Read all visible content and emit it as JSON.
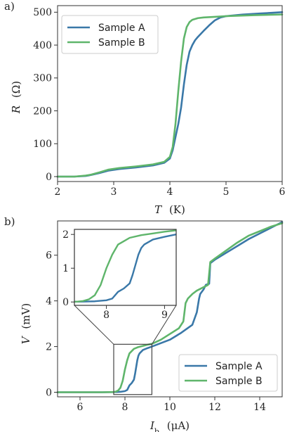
{
  "colors": {
    "sample_a": "#3a78a8",
    "sample_b": "#5fb56b",
    "axis": "#333333",
    "guide": "#444444"
  },
  "chart_data": [
    {
      "panel_label": "a)",
      "type": "line",
      "xlabel_italic": "T",
      "xlabel_unit": "(K)",
      "ylabel_italic": "R",
      "ylabel_unit": "(Ω)",
      "xlim": [
        2,
        6
      ],
      "ylim": [
        -15,
        520
      ],
      "xticks": [
        2,
        3,
        4,
        5,
        6
      ],
      "yticks": [
        0,
        100,
        200,
        300,
        400,
        500
      ],
      "grid": false,
      "legend": {
        "placement": "top-left"
      },
      "series": [
        {
          "name": "Sample A",
          "color": "#3a78a8",
          "x": [
            2.0,
            2.3,
            2.5,
            2.6,
            2.75,
            2.9,
            3.1,
            3.4,
            3.7,
            3.9,
            4.0,
            4.05,
            4.1,
            4.15,
            4.2,
            4.25,
            4.3,
            4.35,
            4.4,
            4.45,
            4.5,
            4.6,
            4.7,
            4.8,
            4.9,
            5.0,
            5.3,
            5.6,
            6.0
          ],
          "y": [
            0,
            0,
            2,
            5,
            11,
            18,
            23,
            28,
            34,
            42,
            55,
            80,
            120,
            160,
            210,
            280,
            340,
            380,
            400,
            415,
            425,
            443,
            460,
            475,
            484,
            488,
            493,
            496,
            500
          ]
        },
        {
          "name": "Sample B",
          "color": "#5fb56b",
          "x": [
            2.0,
            2.3,
            2.5,
            2.6,
            2.75,
            2.9,
            3.1,
            3.4,
            3.7,
            3.9,
            4.0,
            4.05,
            4.1,
            4.15,
            4.2,
            4.25,
            4.3,
            4.35,
            4.4,
            4.5,
            4.6,
            4.8,
            5.0,
            5.5,
            6.0
          ],
          "y": [
            0,
            0,
            3,
            6,
            13,
            21,
            26,
            31,
            37,
            45,
            60,
            90,
            160,
            260,
            350,
            420,
            455,
            470,
            477,
            482,
            484,
            486,
            488,
            491,
            493
          ]
        }
      ]
    },
    {
      "panel_label": "b)",
      "type": "line",
      "xlabel_italic": "I",
      "xlabel_sub": "b",
      "xlabel_unit": "(μA)",
      "ylabel_italic": "V",
      "ylabel_unit": "(mV)",
      "xlim": [
        5,
        15
      ],
      "ylim": [
        -0.2,
        7.5
      ],
      "xticks": [
        6,
        8,
        10,
        12,
        14
      ],
      "yticks": [
        0,
        2,
        4,
        6
      ],
      "grid": false,
      "legend": {
        "placement": "bottom-right"
      },
      "zoom_box": {
        "x": [
          7.5,
          9.2
        ],
        "y": [
          -0.1,
          2.1
        ]
      },
      "inset": {
        "xlim": [
          7.45,
          9.2
        ],
        "ylim": [
          -0.1,
          2.15
        ],
        "xticks": [
          8,
          9
        ],
        "yticks": [
          0,
          1,
          2
        ]
      },
      "series": [
        {
          "name": "Sample A",
          "color": "#3a78a8",
          "x": [
            5.0,
            7.0,
            7.6,
            7.8,
            8.0,
            8.1,
            8.2,
            8.3,
            8.4,
            8.45,
            8.5,
            8.55,
            8.6,
            8.65,
            8.7,
            8.75,
            8.8,
            9.0,
            9.2,
            9.6,
            10.0,
            10.5,
            11.0,
            11.2,
            11.3,
            11.35,
            11.5,
            11.6,
            11.75,
            11.8,
            12.0,
            12.5,
            13.0,
            13.5,
            14.0,
            14.5,
            15.0
          ],
          "y": [
            0.0,
            0.0,
            0.01,
            0.02,
            0.05,
            0.1,
            0.3,
            0.4,
            0.55,
            0.8,
            1.1,
            1.4,
            1.6,
            1.7,
            1.75,
            1.8,
            1.85,
            1.93,
            2.0,
            2.15,
            2.3,
            2.6,
            2.95,
            3.5,
            4.1,
            4.3,
            4.5,
            4.7,
            4.75,
            5.65,
            5.8,
            6.1,
            6.4,
            6.7,
            6.95,
            7.2,
            7.45
          ]
        },
        {
          "name": "Sample B",
          "color": "#5fb56b",
          "x": [
            5.0,
            7.0,
            7.5,
            7.6,
            7.7,
            7.8,
            7.9,
            8.0,
            8.1,
            8.2,
            8.3,
            8.4,
            8.6,
            8.8,
            9.0,
            9.2,
            9.6,
            10.0,
            10.4,
            10.6,
            10.7,
            10.8,
            11.0,
            11.2,
            11.5,
            11.7,
            11.8,
            12.0,
            12.5,
            13.0,
            13.5,
            14.0,
            14.5,
            15.0
          ],
          "y": [
            0.0,
            0.0,
            0.01,
            0.03,
            0.08,
            0.2,
            0.5,
            1.0,
            1.4,
            1.7,
            1.8,
            1.9,
            1.98,
            2.03,
            2.08,
            2.12,
            2.3,
            2.55,
            2.8,
            3.1,
            3.9,
            4.1,
            4.3,
            4.45,
            4.6,
            4.7,
            5.7,
            5.85,
            6.2,
            6.55,
            6.85,
            7.05,
            7.25,
            7.4
          ]
        }
      ]
    }
  ]
}
